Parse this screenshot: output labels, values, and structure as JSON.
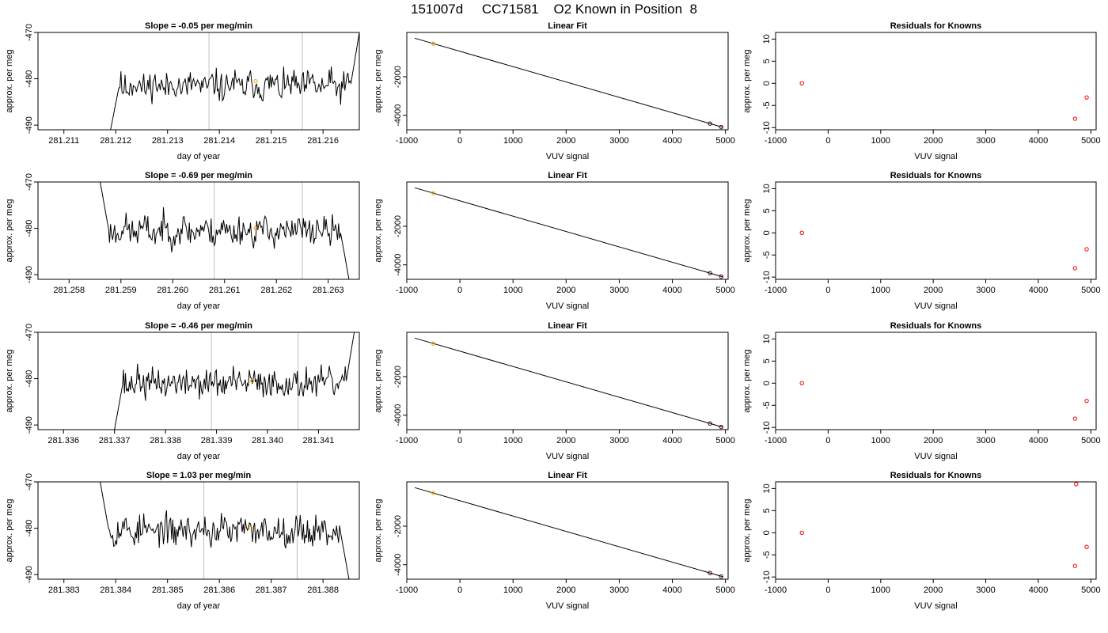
{
  "title": "151007d     CC71581    O2 Known in Position  8",
  "colors": {
    "trace": "#000000",
    "cursor_lines": "#bebebe",
    "known_point": "#ffa500",
    "residual_point": "#ff0000",
    "frame": "#000000"
  },
  "chart_data": [
    {
      "row": 1,
      "type": "line",
      "title": "Slope =  -0.05  per meg/min",
      "xlabel": "day of year",
      "ylabel": "approx. per meg",
      "xlim": [
        281.2105,
        281.2167
      ],
      "ylim": [
        -491,
        -470
      ],
      "xticks": [
        "281.211",
        "281.212",
        "281.213",
        "281.214",
        "281.215",
        "281.216"
      ],
      "xtick_values": [
        281.211,
        281.212,
        281.213,
        281.214,
        281.215,
        281.216
      ],
      "yticks": [
        "-470",
        "-480",
        "-490"
      ],
      "ytick_values": [
        -470,
        -480,
        -490
      ],
      "trace_start": 281.2119,
      "trace_end": 281.2167,
      "trace_level": -481.5,
      "start_value": -491,
      "end_value": -470,
      "seed": 11,
      "vlines": [
        281.2138,
        281.2156
      ],
      "marker": {
        "x": 281.2147,
        "y": -480.5
      }
    },
    {
      "row": 1,
      "type": "scatter",
      "title": "Linear Fit",
      "xlabel": "VUV signal",
      "ylabel": "approx. per meg",
      "xlim": [
        -1000,
        5050
      ],
      "ylim": [
        -4750,
        300
      ],
      "xticks": [
        "-1000",
        "0",
        "1000",
        "2000",
        "3000",
        "4000",
        "5000"
      ],
      "xtick_values": [
        -1000,
        0,
        1000,
        2000,
        3000,
        4000,
        5000
      ],
      "yticks": [
        "-2000",
        "-4000"
      ],
      "ytick_values": [
        -2000,
        -4000
      ],
      "line": [
        [
          -850,
          0
        ],
        [
          4950,
          -4620
        ]
      ],
      "points": [
        {
          "x": -500,
          "y": -280,
          "color": "orange"
        },
        {
          "x": 4710,
          "y": -4430,
          "color": "dark"
        },
        {
          "x": 4920,
          "y": -4610,
          "color": "dark"
        }
      ]
    },
    {
      "row": 1,
      "type": "scatter",
      "title": "Residuals for Knowns",
      "xlabel": "VUV signal",
      "ylabel": "approx. per meg",
      "xlim": [
        -1000,
        5100
      ],
      "ylim": [
        -10.5,
        11.5
      ],
      "xticks": [
        "-1000",
        "0",
        "1000",
        "2000",
        "3000",
        "4000",
        "5000"
      ],
      "xtick_values": [
        -1000,
        0,
        1000,
        2000,
        3000,
        4000,
        5000
      ],
      "yticks": [
        "10",
        "5",
        "0",
        "-5",
        "-10"
      ],
      "ytick_values": [
        10,
        5,
        0,
        -5,
        -10
      ],
      "points": [
        {
          "x": -500,
          "y": 0
        },
        {
          "x": 4700,
          "y": -8
        },
        {
          "x": 4920,
          "y": -3.2
        }
      ]
    },
    {
      "row": 2,
      "type": "line",
      "title": "Slope =  -0.69  per meg/min",
      "xlabel": "day of year",
      "ylabel": "approx. per meg",
      "xlim": [
        281.2574,
        281.2636
      ],
      "ylim": [
        -491,
        -470
      ],
      "xticks": [
        "281.258",
        "281.259",
        "281.260",
        "281.261",
        "281.262",
        "281.263"
      ],
      "xtick_values": [
        281.258,
        281.259,
        281.26,
        281.261,
        281.262,
        281.263
      ],
      "yticks": [
        "-470",
        "-480",
        "-490"
      ],
      "ytick_values": [
        -470,
        -480,
        -490
      ],
      "trace_start": 281.2586,
      "trace_end": 281.2634,
      "trace_level": -480.5,
      "start_value": -470,
      "end_value": -491,
      "seed": 23,
      "vlines": [
        281.2608,
        281.2625
      ],
      "marker": {
        "x": 281.2616,
        "y": -480
      }
    },
    {
      "row": 2,
      "type": "scatter",
      "title": "Linear Fit",
      "xlabel": "VUV signal",
      "ylabel": "approx. per meg",
      "xlim": [
        -1000,
        5050
      ],
      "ylim": [
        -4750,
        300
      ],
      "xticks": [
        "-1000",
        "0",
        "1000",
        "2000",
        "3000",
        "4000",
        "5000"
      ],
      "xtick_values": [
        -1000,
        0,
        1000,
        2000,
        3000,
        4000,
        5000
      ],
      "yticks": [
        "-2000",
        "-4000"
      ],
      "ytick_values": [
        -2000,
        -4000
      ],
      "line": [
        [
          -850,
          0
        ],
        [
          4950,
          -4620
        ]
      ],
      "points": [
        {
          "x": -500,
          "y": -280,
          "color": "orange"
        },
        {
          "x": 4710,
          "y": -4430,
          "color": "dark"
        },
        {
          "x": 4920,
          "y": -4610,
          "color": "dark"
        }
      ]
    },
    {
      "row": 2,
      "type": "scatter",
      "title": "Residuals for Knowns",
      "xlabel": "VUV signal",
      "ylabel": "approx. per meg",
      "xlim": [
        -1000,
        5100
      ],
      "ylim": [
        -10.5,
        11.5
      ],
      "xticks": [
        "-1000",
        "0",
        "1000",
        "2000",
        "3000",
        "4000",
        "5000"
      ],
      "xtick_values": [
        -1000,
        0,
        1000,
        2000,
        3000,
        4000,
        5000
      ],
      "yticks": [
        "10",
        "5",
        "0",
        "-5",
        "-10"
      ],
      "ytick_values": [
        10,
        5,
        0,
        -5,
        -10
      ],
      "points": [
        {
          "x": -500,
          "y": 0
        },
        {
          "x": 4700,
          "y": -8
        },
        {
          "x": 4920,
          "y": -3.7
        }
      ]
    },
    {
      "row": 3,
      "type": "line",
      "title": "Slope =  -0.46  per meg/min",
      "xlabel": "day of year",
      "ylabel": "approx. per meg",
      "xlim": [
        281.3355,
        281.3418
      ],
      "ylim": [
        -491,
        -470
      ],
      "xticks": [
        "281.336",
        "281.337",
        "281.338",
        "281.339",
        "281.340",
        "281.341"
      ],
      "xtick_values": [
        281.336,
        281.337,
        281.338,
        281.339,
        281.34,
        281.341
      ],
      "yticks": [
        "-470",
        "-480",
        "-490"
      ],
      "ytick_values": [
        -470,
        -480,
        -490
      ],
      "trace_start": 281.337,
      "trace_end": 281.3417,
      "trace_level": -481,
      "start_value": -491,
      "end_value": -470,
      "seed": 37,
      "vlines": [
        281.3389,
        281.3406
      ],
      "marker": {
        "x": 281.3397,
        "y": -480.5
      }
    },
    {
      "row": 3,
      "type": "scatter",
      "title": "Linear Fit",
      "xlabel": "VUV signal",
      "ylabel": "approx. per meg",
      "xlim": [
        -1000,
        5050
      ],
      "ylim": [
        -4750,
        300
      ],
      "xticks": [
        "-1000",
        "0",
        "1000",
        "2000",
        "3000",
        "4000",
        "5000"
      ],
      "xtick_values": [
        -1000,
        0,
        1000,
        2000,
        3000,
        4000,
        5000
      ],
      "yticks": [
        "-2000",
        "-4000"
      ],
      "ytick_values": [
        -2000,
        -4000
      ],
      "line": [
        [
          -850,
          0
        ],
        [
          4950,
          -4620
        ]
      ],
      "points": [
        {
          "x": -500,
          "y": -280,
          "color": "orange"
        },
        {
          "x": 4710,
          "y": -4430,
          "color": "dark"
        },
        {
          "x": 4920,
          "y": -4610,
          "color": "dark"
        }
      ]
    },
    {
      "row": 3,
      "type": "scatter",
      "title": "Residuals for Knowns",
      "xlabel": "VUV signal",
      "ylabel": "approx. per meg",
      "xlim": [
        -1000,
        5100
      ],
      "ylim": [
        -10.5,
        11.5
      ],
      "xticks": [
        "-1000",
        "0",
        "1000",
        "2000",
        "3000",
        "4000",
        "5000"
      ],
      "xtick_values": [
        -1000,
        0,
        1000,
        2000,
        3000,
        4000,
        5000
      ],
      "yticks": [
        "10",
        "5",
        "0",
        "-5",
        "-10"
      ],
      "ytick_values": [
        10,
        5,
        0,
        -5,
        -10
      ],
      "points": [
        {
          "x": -500,
          "y": 0
        },
        {
          "x": 4700,
          "y": -8
        },
        {
          "x": 4920,
          "y": -4
        }
      ]
    },
    {
      "row": 4,
      "type": "line",
      "title": "Slope =  1.03  per meg/min",
      "xlabel": "day of year",
      "ylabel": "approx. per meg",
      "xlim": [
        281.3825,
        281.3887
      ],
      "ylim": [
        -491,
        -470
      ],
      "xticks": [
        "281.383",
        "281.384",
        "281.385",
        "281.386",
        "281.387",
        "281.388"
      ],
      "xtick_values": [
        281.383,
        281.384,
        281.385,
        281.386,
        281.387,
        281.388
      ],
      "yticks": [
        "-470",
        "-480",
        "-490"
      ],
      "ytick_values": [
        -470,
        -480,
        -490
      ],
      "trace_start": 281.3837,
      "trace_end": 281.3885,
      "trace_level": -480.5,
      "start_value": -470,
      "end_value": -491,
      "seed": 53,
      "vlines": [
        281.3857,
        281.3875
      ],
      "marker": {
        "x": 281.3866,
        "y": -480
      }
    },
    {
      "row": 4,
      "type": "scatter",
      "title": "Linear Fit",
      "xlabel": "VUV signal",
      "ylabel": "approx. per meg",
      "xlim": [
        -1000,
        5050
      ],
      "ylim": [
        -4750,
        300
      ],
      "xticks": [
        "-1000",
        "0",
        "1000",
        "2000",
        "3000",
        "4000",
        "5000"
      ],
      "xtick_values": [
        -1000,
        0,
        1000,
        2000,
        3000,
        4000,
        5000
      ],
      "yticks": [
        "-2000",
        "-4000"
      ],
      "ytick_values": [
        -2000,
        -4000
      ],
      "line": [
        [
          -850,
          0
        ],
        [
          4950,
          -4620
        ]
      ],
      "points": [
        {
          "x": -500,
          "y": -280,
          "color": "orange"
        },
        {
          "x": 4710,
          "y": -4430,
          "color": "dark"
        },
        {
          "x": 4920,
          "y": -4610,
          "color": "dark"
        }
      ]
    },
    {
      "row": 4,
      "type": "scatter",
      "title": "Residuals for Knowns",
      "xlabel": "VUV signal",
      "ylabel": "approx. per meg",
      "xlim": [
        -1000,
        5100
      ],
      "ylim": [
        -10.5,
        11.5
      ],
      "xticks": [
        "-1000",
        "0",
        "1000",
        "2000",
        "3000",
        "4000",
        "5000"
      ],
      "xtick_values": [
        -1000,
        0,
        1000,
        2000,
        3000,
        4000,
        5000
      ],
      "yticks": [
        "10",
        "5",
        "0",
        "-5",
        "-10"
      ],
      "ytick_values": [
        10,
        5,
        0,
        -5,
        -10
      ],
      "points": [
        {
          "x": -500,
          "y": 0
        },
        {
          "x": 4700,
          "y": -7.5
        },
        {
          "x": 4920,
          "y": -3.2
        },
        {
          "x": 4720,
          "y": 11
        }
      ]
    }
  ]
}
